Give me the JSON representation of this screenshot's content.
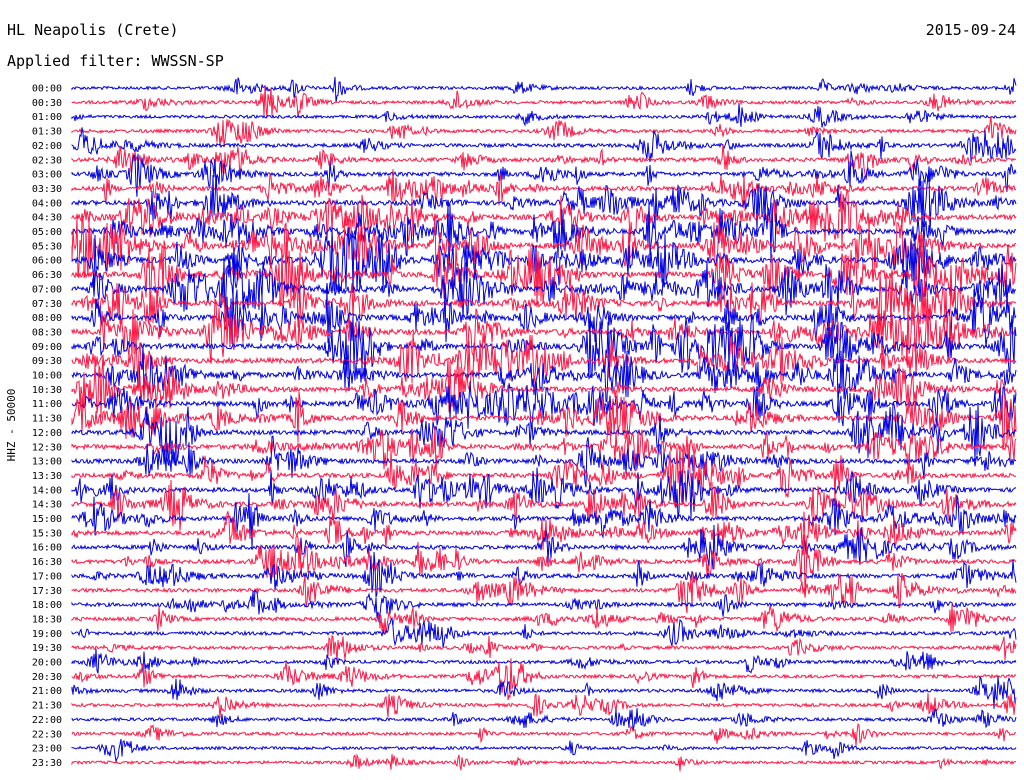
{
  "header": {
    "station": "HL Neapolis (Crete)",
    "date": "2015-09-24",
    "filter": "Applied filter: WWSSN-SP"
  },
  "colors": {
    "trace_a": "#0000e0",
    "trace_b": "#ff1744",
    "text": "#000000",
    "background": "#ffffff"
  },
  "chart_data": {
    "type": "line",
    "ylabel": "HHZ - 50000",
    "rows": [
      "00:00",
      "00:30",
      "01:00",
      "01:30",
      "02:00",
      "02:30",
      "03:00",
      "03:30",
      "04:00",
      "04:30",
      "05:00",
      "05:30",
      "06:00",
      "06:30",
      "07:00",
      "07:30",
      "08:00",
      "08:30",
      "09:00",
      "09:30",
      "10:00",
      "10:30",
      "11:00",
      "11:30",
      "12:00",
      "12:30",
      "13:00",
      "13:30",
      "14:00",
      "14:30",
      "15:00",
      "15:30",
      "16:00",
      "16:30",
      "17:00",
      "17:30",
      "18:00",
      "18:30",
      "19:00",
      "19:30",
      "20:00",
      "20:30",
      "21:00",
      "21:30",
      "22:00",
      "22:30",
      "23:00",
      "23:30"
    ],
    "row_colors": [
      "blue",
      "red"
    ],
    "activity_level": [
      0.22,
      0.28,
      0.18,
      0.32,
      0.42,
      0.48,
      0.55,
      0.62,
      0.72,
      0.82,
      0.9,
      0.95,
      1.0,
      1.0,
      1.0,
      0.95,
      0.95,
      0.92,
      0.9,
      0.85,
      0.85,
      0.8,
      0.8,
      0.75,
      0.75,
      0.72,
      0.7,
      0.68,
      0.7,
      0.65,
      0.6,
      0.6,
      0.55,
      0.55,
      0.5,
      0.45,
      0.42,
      0.4,
      0.35,
      0.3,
      0.28,
      0.3,
      0.3,
      0.26,
      0.22,
      0.2,
      0.18,
      0.16
    ]
  }
}
